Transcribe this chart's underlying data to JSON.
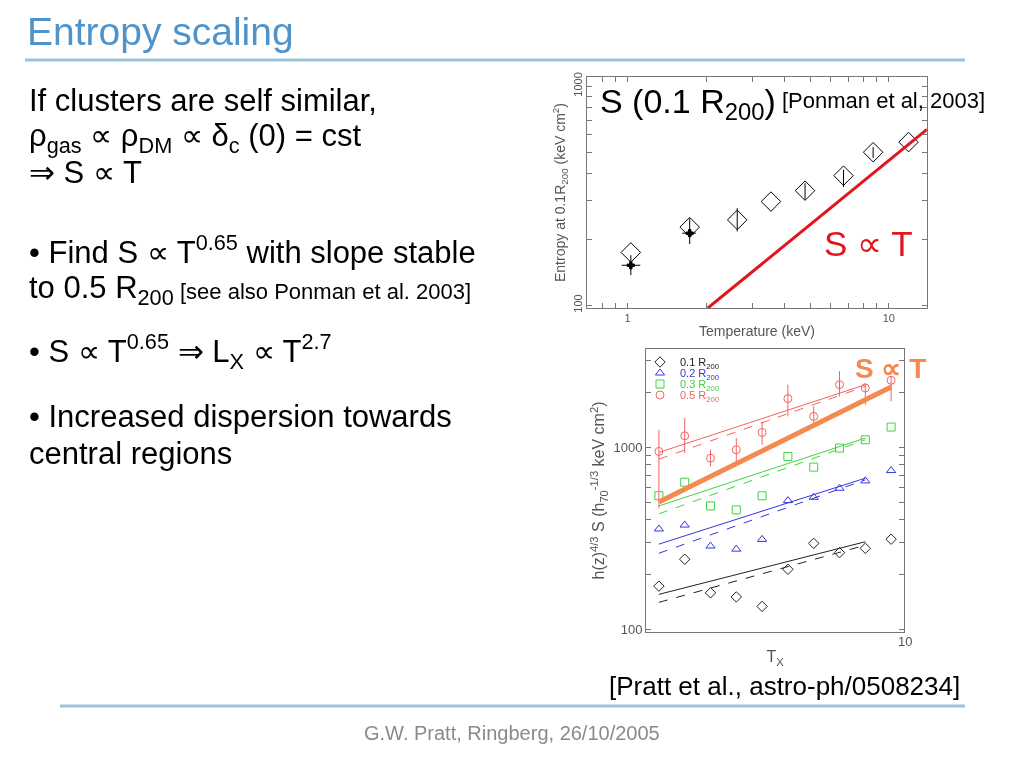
{
  "chart_data": [
    {
      "type": "other",
      "title": "Entropy scaling",
      "annotations": [
        "If clusters are self similar,",
        "ρ$_{gas}$ ∝ ρ$_{DM}$ ∝ δ$_{c}$ (0) = cst",
        "⇒ S ∝ T",
        "• Find S ∝ T$^{0.65}$ with slope stable",
        "to 0.5 R$_{200}$",
        "[see also Ponman et al. 2003]",
        "• S ∝ T$^{0.65}$ ⇒ L$_{X}$ ∝ T$^{2.7}$",
        "• Increased dispersion towards",
        "central regions",
        "G.W. Pratt, Ringberg, 26/10/2005"
      ]
    },
    {
      "type": "scatter",
      "xlabel": "Temperature (keV)",
      "ylabel": "Entropy at 0.1R$_{200}$ (keV cm$^{2}$)",
      "annotations": [
        "S (0.1 R$_{200}$)",
        "[Ponman et al, 2003]",
        "S ∝ T"
      ],
      "log": "xy",
      "xlim": [
        0.7,
        14
      ],
      "ylim": [
        97,
        1100
      ],
      "xticks": [
        {
          "value": 0.8,
          "label": null
        },
        {
          "value": 0.9,
          "label": null
        },
        1,
        {
          "value": 2,
          "label": null
        },
        {
          "value": 3,
          "label": null
        },
        {
          "value": 4,
          "label": null
        },
        {
          "value": 5,
          "label": null
        },
        {
          "value": 6,
          "label": null
        },
        {
          "value": 7,
          "label": null
        },
        {
          "value": 8,
          "label": null
        },
        {
          "value": 9,
          "label": null
        },
        10
      ],
      "yticks": [
        100,
        {
          "value": 200,
          "label": null
        },
        {
          "value": 300,
          "label": null
        },
        {
          "value": 400,
          "label": null
        },
        {
          "value": 500,
          "label": null
        },
        {
          "value": 600,
          "label": null
        },
        {
          "value": 700,
          "label": null
        },
        {
          "value": 800,
          "label": null
        },
        {
          "value": 900,
          "label": null
        },
        1000
      ],
      "series": [
        {
          "marker": "diamond",
          "color": "#000000",
          "x": [
            1.03,
            1.73,
            2.63,
            3.54,
            4.78,
            6.71,
            8.71,
            11.9
          ],
          "values": [
            174,
            227,
            245,
            297,
            333,
            390,
            499,
            555
          ],
          "errors": [
            null,
            [
              190,
              249
            ],
            [
              217,
              277
            ],
            null,
            [
              303,
              360
            ],
            [
              346,
              415
            ],
            [
              470,
              527
            ],
            null
          ]
        },
        {
          "marker": "cross",
          "color": "#000000",
          "x": [
            1.03,
            1.73
          ],
          "values": [
            152,
            213
          ],
          "errors": [
            [
              137,
              169
            ],
            null
          ],
          "xerrors": [
            [
              0.95,
              1.12
            ],
            [
              1.62,
              1.83
            ]
          ]
        },
        {
          "type": "line",
          "color": "#e3151c",
          "x": [
            2.03,
            14
          ],
          "values": [
            97,
            634
          ]
        }
      ]
    },
    {
      "type": "scatter",
      "xlabel": "T$_{X}$",
      "ylabel": "h(z)$^{4/3}$ S (h$_{70}$$^{-1/3}$ keV cm$^{2}$)",
      "annotations": [
        "S ∝ T",
        "[Pratt et al., astro-ph/0508234]",
        "10"
      ],
      "log": true,
      "ylim": [
        97,
        3450
      ],
      "legend": "top left",
      "yticks": [
        100,
        {
          "value": 200,
          "label": null
        },
        {
          "value": 300,
          "label": null
        },
        {
          "value": 400,
          "label": null
        },
        {
          "value": 500,
          "label": null
        },
        {
          "value": 600,
          "label": null
        },
        {
          "value": 700,
          "label": null
        },
        {
          "value": 800,
          "label": null
        },
        {
          "value": 900,
          "label": null
        },
        1000,
        {
          "value": 2000,
          "label": null
        },
        {
          "value": 3000,
          "label": null
        }
      ],
      "categories": [
        null,
        null,
        null,
        null,
        null,
        null,
        null,
        null,
        null,
        null
      ],
      "series": [
        {
          "name": "0.1 R$_{200}$",
          "marker": "diamond",
          "color": "#222222",
          "values": [
            173,
            243,
            159,
            151,
            134,
            214,
            297,
            264,
            279,
            313
          ]
        },
        {
          "name": "0.2 R$_{200}$",
          "marker": "triangle",
          "color": "#3535dd",
          "values": [
            356,
            374,
            287,
            276,
            312,
            509,
            531,
            595,
            653,
            744
          ]
        },
        {
          "name": "0.3 R$_{200}$",
          "marker": "square",
          "color": "#3cd63c",
          "values": [
            542,
            642,
            476,
            453,
            541,
            889,
            777,
            988,
            1097,
            1288
          ]
        },
        {
          "name": "0.5 R$_{200}$",
          "marker": "circle",
          "color": "#f26464",
          "values": [
            947,
            1154,
            870,
            967,
            1204,
            1844,
            1474,
            2200,
            2110,
            2324
          ],
          "errors": [
            [
              462,
              1245
            ],
            [
              927,
              1444
            ],
            [
              783,
              967
            ],
            [
              817,
              1120
            ],
            [
              1030,
              1384
            ],
            [
              1474,
              2200
            ],
            [
              1328,
              1673
            ],
            [
              1897,
              2606
            ],
            [
              1710,
              2249
            ],
            [
              1782,
              2445
            ]
          ]
        },
        {
          "type": "line",
          "color": "#222222",
          "values": [
            156,
            null,
            null,
            null,
            null,
            null,
            null,
            null,
            303,
            null
          ]
        },
        {
          "type": "line",
          "color": "#222222",
          "line_style": "dashed",
          "values": [
            141,
            null,
            null,
            null,
            null,
            null,
            null,
            null,
            290,
            null
          ]
        },
        {
          "type": "line",
          "color": "#3535dd",
          "values": [
            294,
            null,
            null,
            null,
            null,
            null,
            null,
            null,
            676,
            null
          ]
        },
        {
          "type": "line",
          "color": "#3535dd",
          "line_style": "dashed",
          "values": [
            262,
            null,
            null,
            null,
            null,
            null,
            null,
            null,
            662,
            null
          ]
        },
        {
          "type": "line",
          "color": "#3cd63c",
          "values": [
            476,
            null,
            null,
            null,
            null,
            null,
            null,
            null,
            1121,
            null
          ]
        },
        {
          "type": "line",
          "color": "#3cd63c",
          "line_style": "dashed",
          "values": [
            431,
            null,
            null,
            null,
            null,
            null,
            null,
            null,
            1097,
            null
          ]
        },
        {
          "type": "line",
          "color": "#f26464",
          "values": [
            935,
            null,
            null,
            null,
            null,
            null,
            null,
            null,
            2198,
            null
          ]
        },
        {
          "type": "line",
          "color": "#f26464",
          "line_style": "dashed",
          "values": [
            859,
            null,
            null,
            null,
            null,
            null,
            null,
            null,
            2153,
            null
          ]
        },
        {
          "type": "line",
          "color": "#f58a50",
          "values": [
            500,
            null,
            null,
            null,
            null,
            null,
            null,
            null,
            null,
            2134
          ]
        }
      ]
    }
  ]
}
